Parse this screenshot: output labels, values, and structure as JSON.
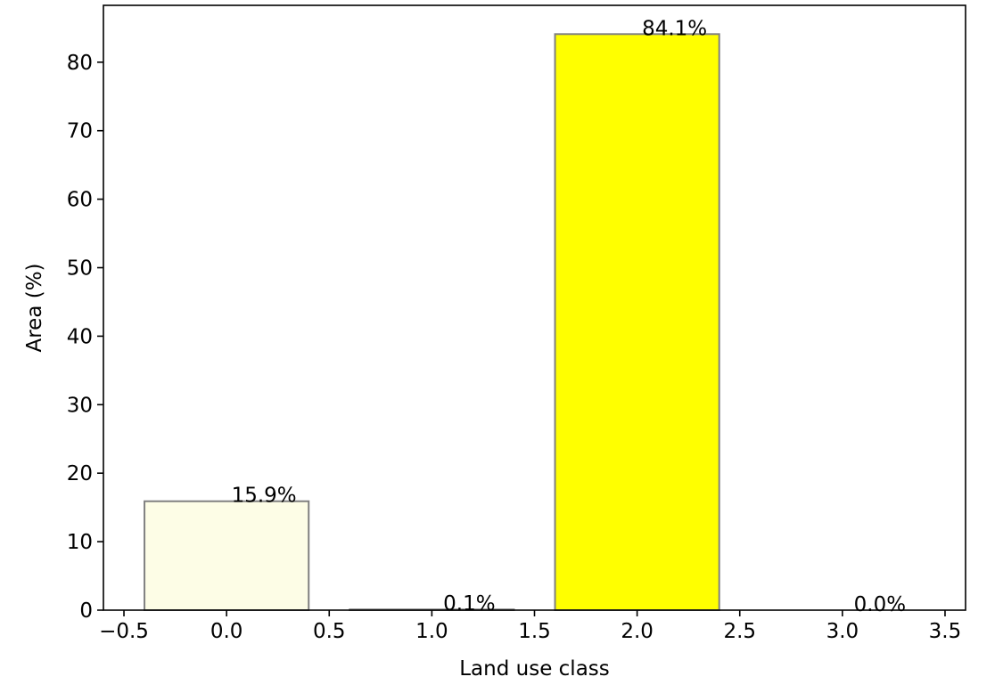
{
  "chart_data": {
    "type": "bar",
    "title": "",
    "xlabel": "Land use class",
    "ylabel": "Area (%)",
    "x": [
      0,
      1,
      2,
      3
    ],
    "values": [
      15.9,
      0.1,
      84.1,
      0.0
    ],
    "data_labels": [
      "15.9%",
      "0.1%",
      "84.1%",
      "0.0%"
    ],
    "bar_width": 0.8,
    "bar_colors": [
      "#fdfde6",
      "#fdfde6",
      "#ffff00",
      "#fdfde6"
    ],
    "bar_edge_color": "#808080",
    "xlim": [
      -0.6,
      3.6
    ],
    "ylim": [
      0,
      88.3
    ],
    "x_ticks": [
      -0.5,
      0.0,
      0.5,
      1.0,
      1.5,
      2.0,
      2.5,
      3.0,
      3.5
    ],
    "x_tick_labels": [
      "−0.5",
      "0.0",
      "0.5",
      "1.0",
      "1.5",
      "2.0",
      "2.5",
      "3.0",
      "3.5"
    ],
    "y_ticks": [
      0,
      10,
      20,
      30,
      40,
      50,
      60,
      70,
      80
    ],
    "y_tick_labels": [
      "0",
      "10",
      "20",
      "30",
      "40",
      "50",
      "60",
      "70",
      "80"
    ],
    "grid": false,
    "legend": "none"
  }
}
